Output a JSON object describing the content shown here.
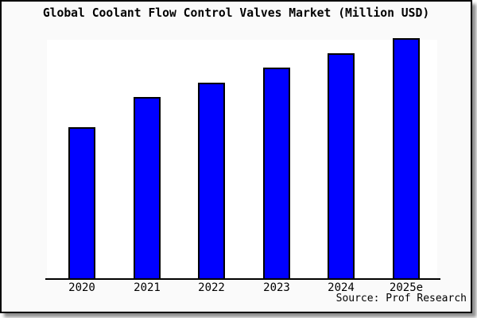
{
  "title": "Global Coolant Flow Control Valves Market (Million USD)",
  "source": "Source: Prof Research",
  "colors": {
    "bar_fill": "#0000ff",
    "bar_border": "#000000",
    "frame_background": "#fafafa",
    "plot_background": "#ffffff",
    "text": "#000000"
  },
  "chart_data": {
    "type": "bar",
    "title": "Global Coolant Flow Control Valves Market (Million USD)",
    "categories": [
      "2020",
      "2021",
      "2022",
      "2023",
      "2024",
      "2025e"
    ],
    "values": [
      62.7,
      75.2,
      81.4,
      87.6,
      93.7,
      100
    ],
    "values_unit": "relative height, % of 2025e bar (no y-axis scale shown in chart)",
    "xlabel": "",
    "ylabel": "",
    "ylim": [
      0,
      100
    ],
    "grid": false,
    "legend": false,
    "annotation": "Source: Prof Research"
  }
}
